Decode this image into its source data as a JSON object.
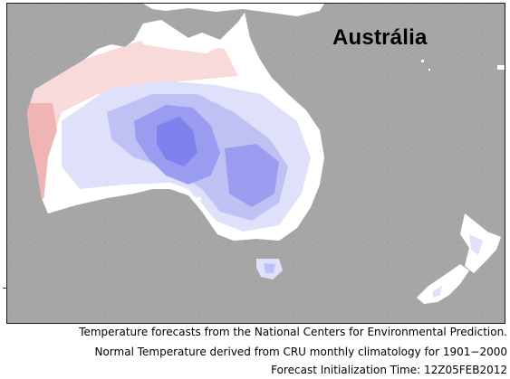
{
  "map": {
    "title": "Austrália",
    "colors": {
      "ocean": "#a6a6a6",
      "near_normal": "#ffffff",
      "warm_light": "#f8dada",
      "warm": "#f0b4b4",
      "cool_light": "#dfe0fa",
      "cool": "#bfc1f5",
      "cool_strong": "#9a9cf0",
      "cool_deep": "#7f82ec"
    },
    "regions": [
      "Australia",
      "Tasmania",
      "New Zealand",
      "Papua New Guinea"
    ]
  },
  "caption": {
    "line1": "Temperature forecasts from the National Centers for Environmental Prediction.",
    "line2": "Normal Temperature derived from CRU monthly climatology for 1901−2000",
    "line3": "Forecast Initialization Time: 12Z05FEB2012"
  }
}
